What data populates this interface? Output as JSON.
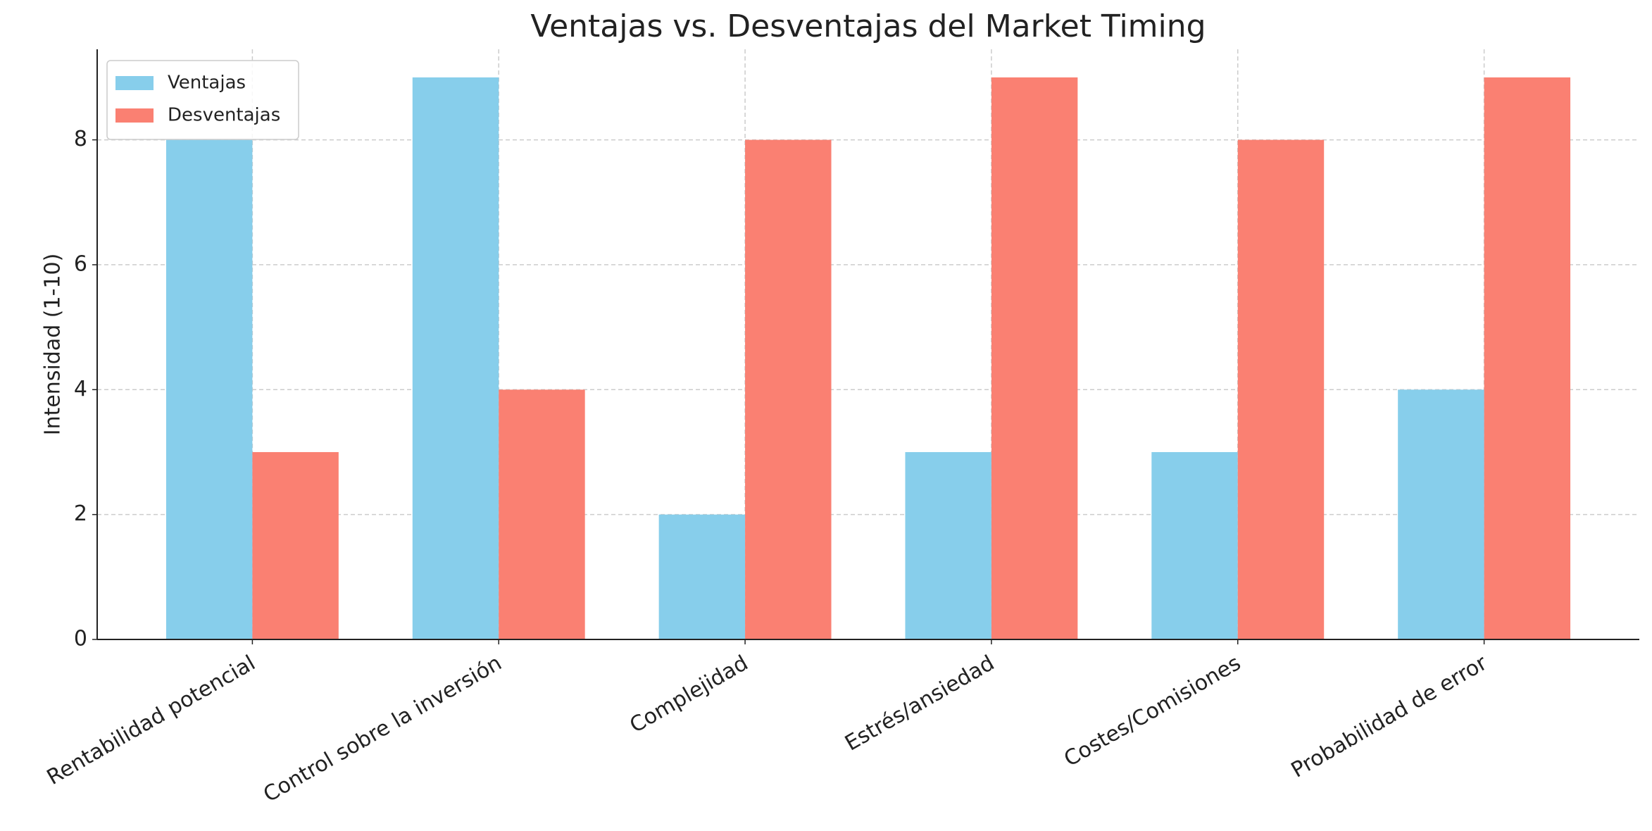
{
  "chart_data": {
    "type": "bar",
    "title": "Ventajas vs. Desventajas del Market Timing",
    "y_label": "Intensidad (1-10)",
    "categories": [
      "Rentabilidad potencial",
      "Control sobre la inversión",
      "Complejidad",
      "Estrés/ansiedad",
      "Costes/Comisiones",
      "Probabilidad de error"
    ],
    "series": [
      {
        "name": "Ventajas",
        "color": "#87ceeb",
        "values": [
          8,
          9,
          2,
          3,
          3,
          4
        ]
      },
      {
        "name": "Desventajas",
        "color": "#fa8072",
        "values": [
          3,
          4,
          8,
          9,
          8,
          9
        ]
      }
    ],
    "ylim": [
      0,
      9.45
    ],
    "yticks": [
      0,
      2,
      4,
      6,
      8
    ],
    "grid": true,
    "legend": "upper left"
  }
}
